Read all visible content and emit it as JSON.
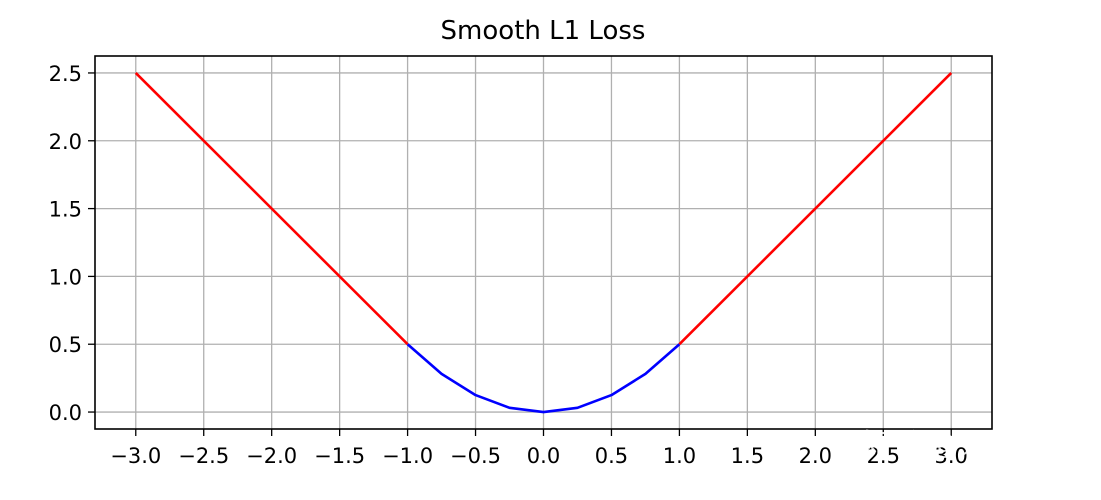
{
  "chart_data": {
    "type": "line",
    "title": "Smooth L1 Loss",
    "xlabel": "",
    "ylabel": "",
    "xlim": [
      -3.3,
      3.3
    ],
    "ylim": [
      -0.125,
      2.625
    ],
    "xticks": [
      -3.0,
      -2.5,
      -2.0,
      -1.5,
      -1.0,
      -0.5,
      0.0,
      0.5,
      1.0,
      1.5,
      2.0,
      2.5,
      3.0
    ],
    "xtick_labels": [
      "−3.0",
      "−2.5",
      "−2.0",
      "−1.5",
      "−1.0",
      "−0.5",
      "0.0",
      "0.5",
      "1.0",
      "1.5",
      "2.0",
      "2.5",
      "3.0"
    ],
    "yticks": [
      0.0,
      0.5,
      1.0,
      1.5,
      2.0,
      2.5
    ],
    "ytick_labels": [
      "0.0",
      "0.5",
      "1.0",
      "1.5",
      "2.0",
      "2.5"
    ],
    "grid": true,
    "series": [
      {
        "color": "#ff0000",
        "x": [
          -3.0,
          -1.0
        ],
        "y": [
          2.5,
          0.5
        ]
      },
      {
        "color": "#0000ff",
        "x": [
          -1.0,
          -0.75,
          -0.5,
          -0.25,
          0.0,
          0.25,
          0.5,
          0.75,
          1.0
        ],
        "y": [
          0.5,
          0.28125,
          0.125,
          0.03125,
          0.0,
          0.03125,
          0.125,
          0.28125,
          0.5
        ]
      },
      {
        "color": "#ff0000",
        "x": [
          1.0,
          3.0
        ],
        "y": [
          0.5,
          2.5
        ]
      }
    ]
  },
  "watermark": "知乎 @尹相楠"
}
